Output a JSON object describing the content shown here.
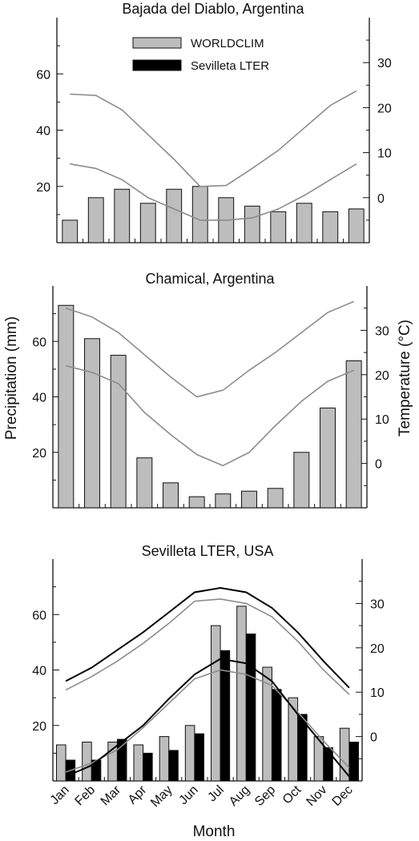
{
  "figure": {
    "shared_ylabel_left": "Precipitation (mm)",
    "shared_ylabel_right": "Temperature (°C)",
    "shared_xlabel": "Month"
  },
  "legend": {
    "items": [
      {
        "label": "WORLDCLIM",
        "color": "#bdbdbd"
      },
      {
        "label": "Sevilleta LTER",
        "color": "#000000"
      }
    ]
  },
  "colors": {
    "worldclim_bar": "#bdbdbd",
    "worldclim_line": "#8c8c8c",
    "lter_bar": "#000000",
    "lter_line": "#000000",
    "axis": "#111111"
  },
  "chart_data": [
    {
      "type": "bar",
      "title": "Bajada del Diablo, Argentina",
      "categories": [
        "Jan",
        "Feb",
        "Mar",
        "Apr",
        "May",
        "Jun",
        "Jul",
        "Aug",
        "Sep",
        "Oct",
        "Nov",
        "Dec"
      ],
      "ylim": [
        0,
        80
      ],
      "yticks": [
        20,
        40,
        60
      ],
      "y2lim": [
        -10,
        40
      ],
      "y2ticks": [
        0,
        10,
        20,
        30
      ],
      "series": [
        {
          "name": "WORLDCLIM",
          "kind": "bar",
          "axis": "left",
          "values": [
            8,
            16,
            19,
            14,
            19,
            20,
            16,
            13,
            11,
            14,
            11,
            12
          ]
        },
        {
          "kind": "line",
          "axis": "right",
          "values": [
            23,
            22.7,
            19.5,
            14,
            8.5,
            2.5,
            2.7,
            6.5,
            10.5,
            15.5,
            20.5,
            23.7
          ]
        },
        {
          "kind": "line",
          "axis": "right",
          "values": [
            7.5,
            6.5,
            4,
            0,
            -2.5,
            -5,
            -5,
            -4.5,
            -2.5,
            0.5,
            4,
            7.5
          ]
        }
      ]
    },
    {
      "type": "bar",
      "title": "Chamical, Argentina",
      "categories": [
        "Jan",
        "Feb",
        "Mar",
        "Apr",
        "May",
        "Jun",
        "Jul",
        "Aug",
        "Sep",
        "Oct",
        "Nov",
        "Dec"
      ],
      "ylim": [
        0,
        80
      ],
      "yticks": [
        20,
        40,
        60
      ],
      "y2lim": [
        -10,
        40
      ],
      "y2ticks": [
        0,
        10,
        20,
        30
      ],
      "series": [
        {
          "name": "WORLDCLIM",
          "kind": "bar",
          "axis": "left",
          "values": [
            73,
            61,
            55,
            18,
            9,
            4,
            5,
            6,
            7,
            20,
            36,
            53
          ]
        },
        {
          "kind": "line",
          "axis": "right",
          "values": [
            35,
            33,
            29.5,
            24.5,
            19.5,
            15,
            16.5,
            21,
            25,
            29.5,
            34,
            36.5
          ]
        },
        {
          "kind": "line",
          "axis": "right",
          "values": [
            22,
            20.5,
            18,
            11.5,
            6.5,
            2,
            -0.5,
            2.5,
            8.5,
            14,
            18.5,
            21
          ]
        }
      ]
    },
    {
      "type": "bar",
      "title": "Sevilleta LTER, USA",
      "categories": [
        "Jan",
        "Feb",
        "Mar",
        "Apr",
        "May",
        "Jun",
        "Jul",
        "Aug",
        "Sep",
        "Oct",
        "Nov",
        "Dec"
      ],
      "xlabel": "Month",
      "ylim": [
        0,
        80
      ],
      "yticks": [
        20,
        40,
        60
      ],
      "y2lim": [
        -10,
        40
      ],
      "y2ticks": [
        0,
        10,
        20,
        30
      ],
      "series": [
        {
          "name": "WORLDCLIM",
          "kind": "bar",
          "axis": "left",
          "values": [
            13,
            14,
            14,
            13,
            16,
            20,
            56,
            63,
            41,
            30,
            16,
            19
          ]
        },
        {
          "name": "Sevilleta LTER",
          "kind": "bar",
          "axis": "left",
          "values": [
            7.5,
            7.5,
            15,
            10,
            11,
            17,
            47,
            53,
            33,
            24,
            12,
            14
          ]
        },
        {
          "name": "WORLDCLIM",
          "kind": "line",
          "axis": "right",
          "values": [
            10.5,
            13.5,
            17,
            21,
            25.5,
            30.5,
            31,
            30,
            27,
            21.5,
            15,
            9.5
          ]
        },
        {
          "name": "WORLDCLIM",
          "kind": "line",
          "axis": "right",
          "values": [
            -8,
            -6,
            -3,
            2,
            7.5,
            13,
            15,
            14,
            11.5,
            5.5,
            -1,
            -7
          ]
        },
        {
          "name": "Sevilleta LTER",
          "kind": "line",
          "axis": "right",
          "values": [
            12.5,
            15.5,
            19.5,
            23.5,
            28,
            32.5,
            33.5,
            32.5,
            29,
            23.5,
            17,
            11
          ]
        },
        {
          "name": "Sevilleta LTER",
          "kind": "line",
          "axis": "right",
          "values": [
            -9,
            -6.5,
            -2,
            2.5,
            8.5,
            14,
            17.5,
            16.5,
            12.5,
            5,
            -2,
            -9
          ]
        }
      ]
    }
  ]
}
